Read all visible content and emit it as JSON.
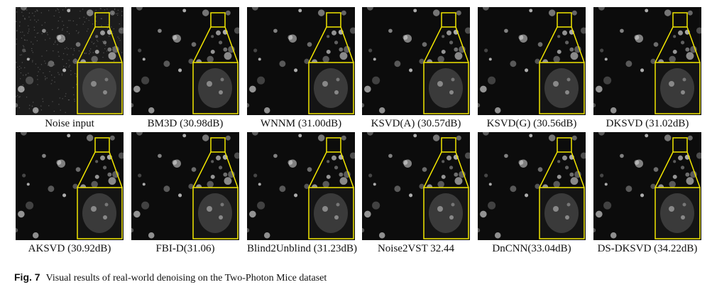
{
  "figure": {
    "panels": [
      {
        "label": "Noise input"
      },
      {
        "label": "BM3D (30.98dB)"
      },
      {
        "label": "WNNM (31.00dB)"
      },
      {
        "label": "KSVD(A) (30.57dB)"
      },
      {
        "label": "KSVD(G) (30.56dB)"
      },
      {
        "label": "DKSVD (31.02dB)"
      },
      {
        "label": "AKSVD (30.92dB)"
      },
      {
        "label": "FBI-D(31.06)"
      },
      {
        "label": "Blind2Unblind (31.23dB)"
      },
      {
        "label": "Noise2VST 32.44"
      },
      {
        "label": "DnCNN(33.04dB)"
      },
      {
        "label": "DS-DKSVD (34.22dB)"
      }
    ],
    "caption": {
      "number": "Fig. 7",
      "text": "Visual results of real-world denoising on the Two-Photon Mice dataset"
    }
  }
}
